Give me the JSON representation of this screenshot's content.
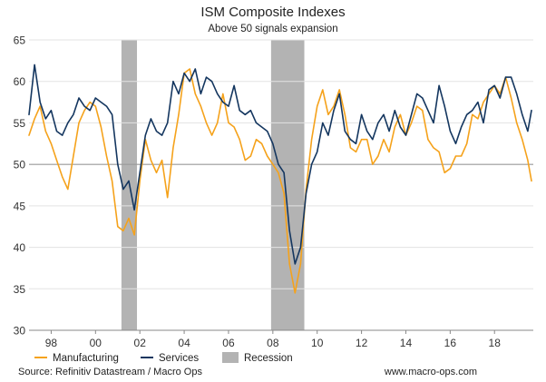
{
  "chart_data": {
    "type": "line",
    "title": "ISM Composite Indexes",
    "subtitle": "Above 50 signals expansion",
    "xlabel": "",
    "ylabel": "",
    "xlim": [
      1997.0,
      2019.75
    ],
    "ylim": [
      30,
      65
    ],
    "y_ticks": [
      30,
      35,
      40,
      45,
      50,
      55,
      60,
      65
    ],
    "x_ticks": [
      {
        "value": 1998,
        "label": "98"
      },
      {
        "value": 2000,
        "label": "00"
      },
      {
        "value": 2002,
        "label": "02"
      },
      {
        "value": 2004,
        "label": "04"
      },
      {
        "value": 2006,
        "label": "06"
      },
      {
        "value": 2008,
        "label": "08"
      },
      {
        "value": 2010,
        "label": "10"
      },
      {
        "value": 2012,
        "label": "12"
      },
      {
        "value": 2014,
        "label": "14"
      },
      {
        "value": 2016,
        "label": "16"
      },
      {
        "value": 2018,
        "label": "18"
      }
    ],
    "reference_line": 50,
    "recessions": [
      {
        "start": 2001.17,
        "end": 2001.87
      },
      {
        "start": 2007.92,
        "end": 2009.42
      }
    ],
    "series": [
      {
        "name": "Manufacturing",
        "color": "#f5a21b",
        "x": [
          1997.0,
          1997.25,
          1997.5,
          1997.75,
          1998.0,
          1998.25,
          1998.5,
          1998.75,
          1999.0,
          1999.25,
          1999.5,
          1999.75,
          2000.0,
          2000.25,
          2000.5,
          2000.75,
          2001.0,
          2001.25,
          2001.5,
          2001.75,
          2002.0,
          2002.25,
          2002.5,
          2002.75,
          2003.0,
          2003.25,
          2003.5,
          2003.75,
          2004.0,
          2004.25,
          2004.5,
          2004.75,
          2005.0,
          2005.25,
          2005.5,
          2005.75,
          2006.0,
          2006.25,
          2006.5,
          2006.75,
          2007.0,
          2007.25,
          2007.5,
          2007.75,
          2008.0,
          2008.25,
          2008.5,
          2008.75,
          2009.0,
          2009.25,
          2009.5,
          2009.75,
          2010.0,
          2010.25,
          2010.5,
          2010.75,
          2011.0,
          2011.25,
          2011.5,
          2011.75,
          2012.0,
          2012.25,
          2012.5,
          2012.75,
          2013.0,
          2013.25,
          2013.5,
          2013.75,
          2014.0,
          2014.25,
          2014.5,
          2014.75,
          2015.0,
          2015.25,
          2015.5,
          2015.75,
          2016.0,
          2016.25,
          2016.5,
          2016.75,
          2017.0,
          2017.25,
          2017.5,
          2017.75,
          2018.0,
          2018.25,
          2018.5,
          2018.75,
          2019.0,
          2019.25,
          2019.5,
          2019.67
        ],
        "values": [
          53.5,
          55.5,
          57.0,
          54.0,
          52.5,
          50.5,
          48.5,
          47.0,
          51.0,
          55.0,
          56.5,
          57.5,
          57.0,
          54.5,
          51.0,
          48.0,
          42.5,
          42.0,
          43.5,
          41.5,
          48.0,
          53.0,
          50.5,
          49.0,
          50.5,
          46.0,
          52.0,
          56.0,
          61.0,
          61.5,
          58.5,
          57.0,
          55.0,
          53.5,
          55.0,
          58.5,
          55.0,
          54.5,
          53.0,
          50.5,
          51.0,
          53.0,
          52.5,
          51.0,
          50.0,
          49.0,
          46.5,
          38.0,
          34.5,
          38.0,
          47.0,
          53.0,
          57.0,
          59.0,
          56.0,
          57.0,
          59.0,
          56.0,
          52.0,
          51.5,
          53.0,
          53.0,
          50.0,
          51.0,
          53.0,
          51.5,
          54.5,
          56.0,
          53.5,
          55.0,
          57.0,
          56.5,
          53.0,
          52.0,
          51.5,
          49.0,
          49.5,
          51.0,
          51.0,
          52.5,
          56.0,
          55.5,
          57.5,
          58.5,
          59.5,
          58.5,
          60.5,
          58.0,
          55.0,
          53.0,
          50.5,
          48.0
        ]
      },
      {
        "name": "Services",
        "color": "#14365f",
        "x": [
          1997.0,
          1997.25,
          1997.5,
          1997.75,
          1998.0,
          1998.25,
          1998.5,
          1998.75,
          1999.0,
          1999.25,
          1999.5,
          1999.75,
          2000.0,
          2000.25,
          2000.5,
          2000.75,
          2001.0,
          2001.25,
          2001.5,
          2001.75,
          2002.0,
          2002.25,
          2002.5,
          2002.75,
          2003.0,
          2003.25,
          2003.5,
          2003.75,
          2004.0,
          2004.25,
          2004.5,
          2004.75,
          2005.0,
          2005.25,
          2005.5,
          2005.75,
          2006.0,
          2006.25,
          2006.5,
          2006.75,
          2007.0,
          2007.25,
          2007.5,
          2007.75,
          2008.0,
          2008.25,
          2008.5,
          2008.75,
          2009.0,
          2009.25,
          2009.5,
          2009.75,
          2010.0,
          2010.25,
          2010.5,
          2010.75,
          2011.0,
          2011.25,
          2011.5,
          2011.75,
          2012.0,
          2012.25,
          2012.5,
          2012.75,
          2013.0,
          2013.25,
          2013.5,
          2013.75,
          2014.0,
          2014.25,
          2014.5,
          2014.75,
          2015.0,
          2015.25,
          2015.5,
          2015.75,
          2016.0,
          2016.25,
          2016.5,
          2016.75,
          2017.0,
          2017.25,
          2017.5,
          2017.75,
          2018.0,
          2018.25,
          2018.5,
          2018.75,
          2019.0,
          2019.25,
          2019.5,
          2019.67
        ],
        "values": [
          56.0,
          62.0,
          57.5,
          55.5,
          56.5,
          54.0,
          53.5,
          55.0,
          56.0,
          58.0,
          57.0,
          56.5,
          58.0,
          57.5,
          57.0,
          56.0,
          50.0,
          47.0,
          48.0,
          44.5,
          49.0,
          53.5,
          55.5,
          54.0,
          53.5,
          55.0,
          60.0,
          58.5,
          61.0,
          60.0,
          61.5,
          58.5,
          60.5,
          60.0,
          58.5,
          57.5,
          57.0,
          59.5,
          56.5,
          56.0,
          56.5,
          55.0,
          54.5,
          54.0,
          52.5,
          50.0,
          49.0,
          42.0,
          38.0,
          40.0,
          46.5,
          50.0,
          51.5,
          55.0,
          53.5,
          56.5,
          58.5,
          54.0,
          53.0,
          52.5,
          56.0,
          54.0,
          53.0,
          55.0,
          56.0,
          54.0,
          56.5,
          54.5,
          53.5,
          56.0,
          58.5,
          58.0,
          56.5,
          55.0,
          59.5,
          57.0,
          54.0,
          52.5,
          54.5,
          56.0,
          56.5,
          57.5,
          55.0,
          59.0,
          59.5,
          58.0,
          60.5,
          60.5,
          58.5,
          56.0,
          54.0,
          56.5
        ]
      }
    ],
    "legend": [
      {
        "label": "Manufacturing",
        "kind": "line",
        "color": "#f5a21b"
      },
      {
        "label": "Services",
        "kind": "line",
        "color": "#14365f"
      },
      {
        "label": "Recession",
        "kind": "box",
        "color": "#b3b3b3"
      }
    ],
    "legend_position": "bottom-left",
    "source": "Source: Refinitiv Datastream / Macro Ops",
    "website": "www.macro-ops.com"
  }
}
